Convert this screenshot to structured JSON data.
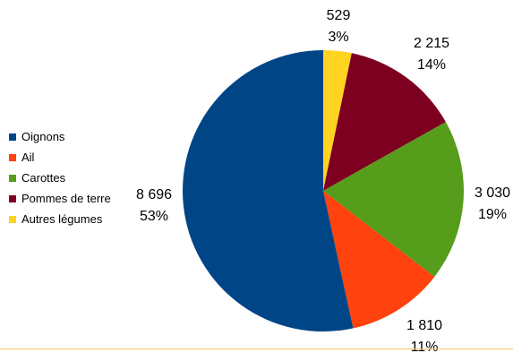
{
  "chart_data": {
    "type": "pie",
    "start_angle_deg": 0,
    "direction": "clockwise",
    "slices": [
      {
        "name": "Autres légumes",
        "value": 529,
        "value_label": "529",
        "percent_label": "3%",
        "color": "#ffd320"
      },
      {
        "name": "Pommes de terre",
        "value": 2215,
        "value_label": "2 215",
        "percent_label": "14%",
        "color": "#7e0021"
      },
      {
        "name": "Carottes",
        "value": 3030,
        "value_label": "3 030",
        "percent_label": "19%",
        "color": "#579d1c"
      },
      {
        "name": "Ail",
        "value": 1810,
        "value_label": "1 810",
        "percent_label": "11%",
        "color": "#ff420e"
      },
      {
        "name": "Oignons",
        "value": 8696,
        "value_label": "8 696",
        "percent_label": "53%",
        "color": "#004586"
      }
    ],
    "legend": {
      "placement": "left",
      "items": [
        {
          "label": "Oignons",
          "color": "#004586"
        },
        {
          "label": "Ail",
          "color": "#ff420e"
        },
        {
          "label": "Carottes",
          "color": "#579d1c"
        },
        {
          "label": "Pommes de terre",
          "color": "#7e0021"
        },
        {
          "label": "Autres légumes",
          "color": "#ffd320"
        }
      ]
    },
    "title": ""
  }
}
